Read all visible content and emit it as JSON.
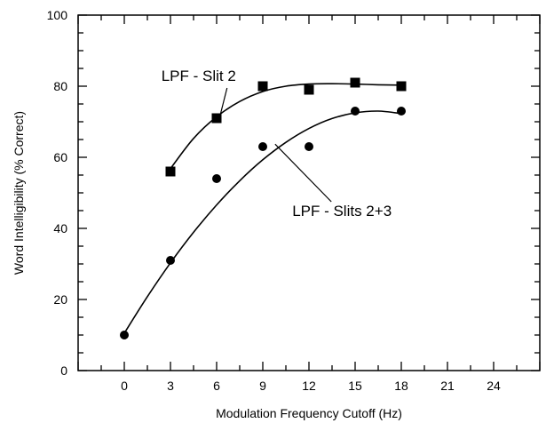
{
  "chart_data": {
    "type": "scatter",
    "title": "",
    "xlabel": "Modulation Frequency Cutoff (Hz)",
    "ylabel": "Word Intelligibility (% Correct)",
    "xlim": [
      -3,
      27
    ],
    "ylim": [
      0,
      100
    ],
    "xticks": [
      0,
      3,
      6,
      9,
      12,
      15,
      18,
      21,
      24
    ],
    "yticks": [
      0,
      20,
      40,
      60,
      80,
      100
    ],
    "x_minor_step": 1.5,
    "y_minor_step": 5,
    "grid": false,
    "legend": "none",
    "series": [
      {
        "name": "LPF - Slit 2",
        "marker": "square",
        "x": [
          3,
          6,
          9,
          12,
          15,
          18
        ],
        "y": [
          56,
          71,
          80,
          79,
          81,
          80
        ],
        "fit_curve": {
          "x": [
            3,
            4.5,
            6,
            7.5,
            9,
            10.5,
            12,
            13.5,
            15,
            16.5,
            18
          ],
          "y": [
            56.8,
            65.3,
            71.4,
            75.7,
            78.5,
            80.0,
            80.6,
            80.7,
            80.6,
            80.4,
            80.3
          ]
        }
      },
      {
        "name": "LPF - Slits 2+3",
        "marker": "circle",
        "x": [
          0,
          3,
          6,
          9,
          12,
          15,
          18
        ],
        "y": [
          10,
          31,
          54,
          63,
          63,
          73,
          73
        ],
        "fit_curve": {
          "x": [
            0,
            1.5,
            3,
            4.5,
            6,
            7.5,
            9,
            10.5,
            12,
            13.5,
            15,
            16.5,
            18
          ],
          "y": [
            10.5,
            20.8,
            30.3,
            38.9,
            46.6,
            53.4,
            59.3,
            64.2,
            68.1,
            70.9,
            72.5,
            73.0,
            72.3
          ]
        }
      }
    ],
    "annotations": [
      {
        "text": "LPF - Slit 2",
        "series": 0,
        "at": [
          4.6,
          81.5
        ],
        "points_to": [
          6.2,
          71.3
        ]
      },
      {
        "text": "LPF - Slits 2+3",
        "series": 1,
        "at": [
          13.8,
          43.5
        ],
        "points_to": [
          9.8,
          63.7
        ]
      }
    ]
  }
}
